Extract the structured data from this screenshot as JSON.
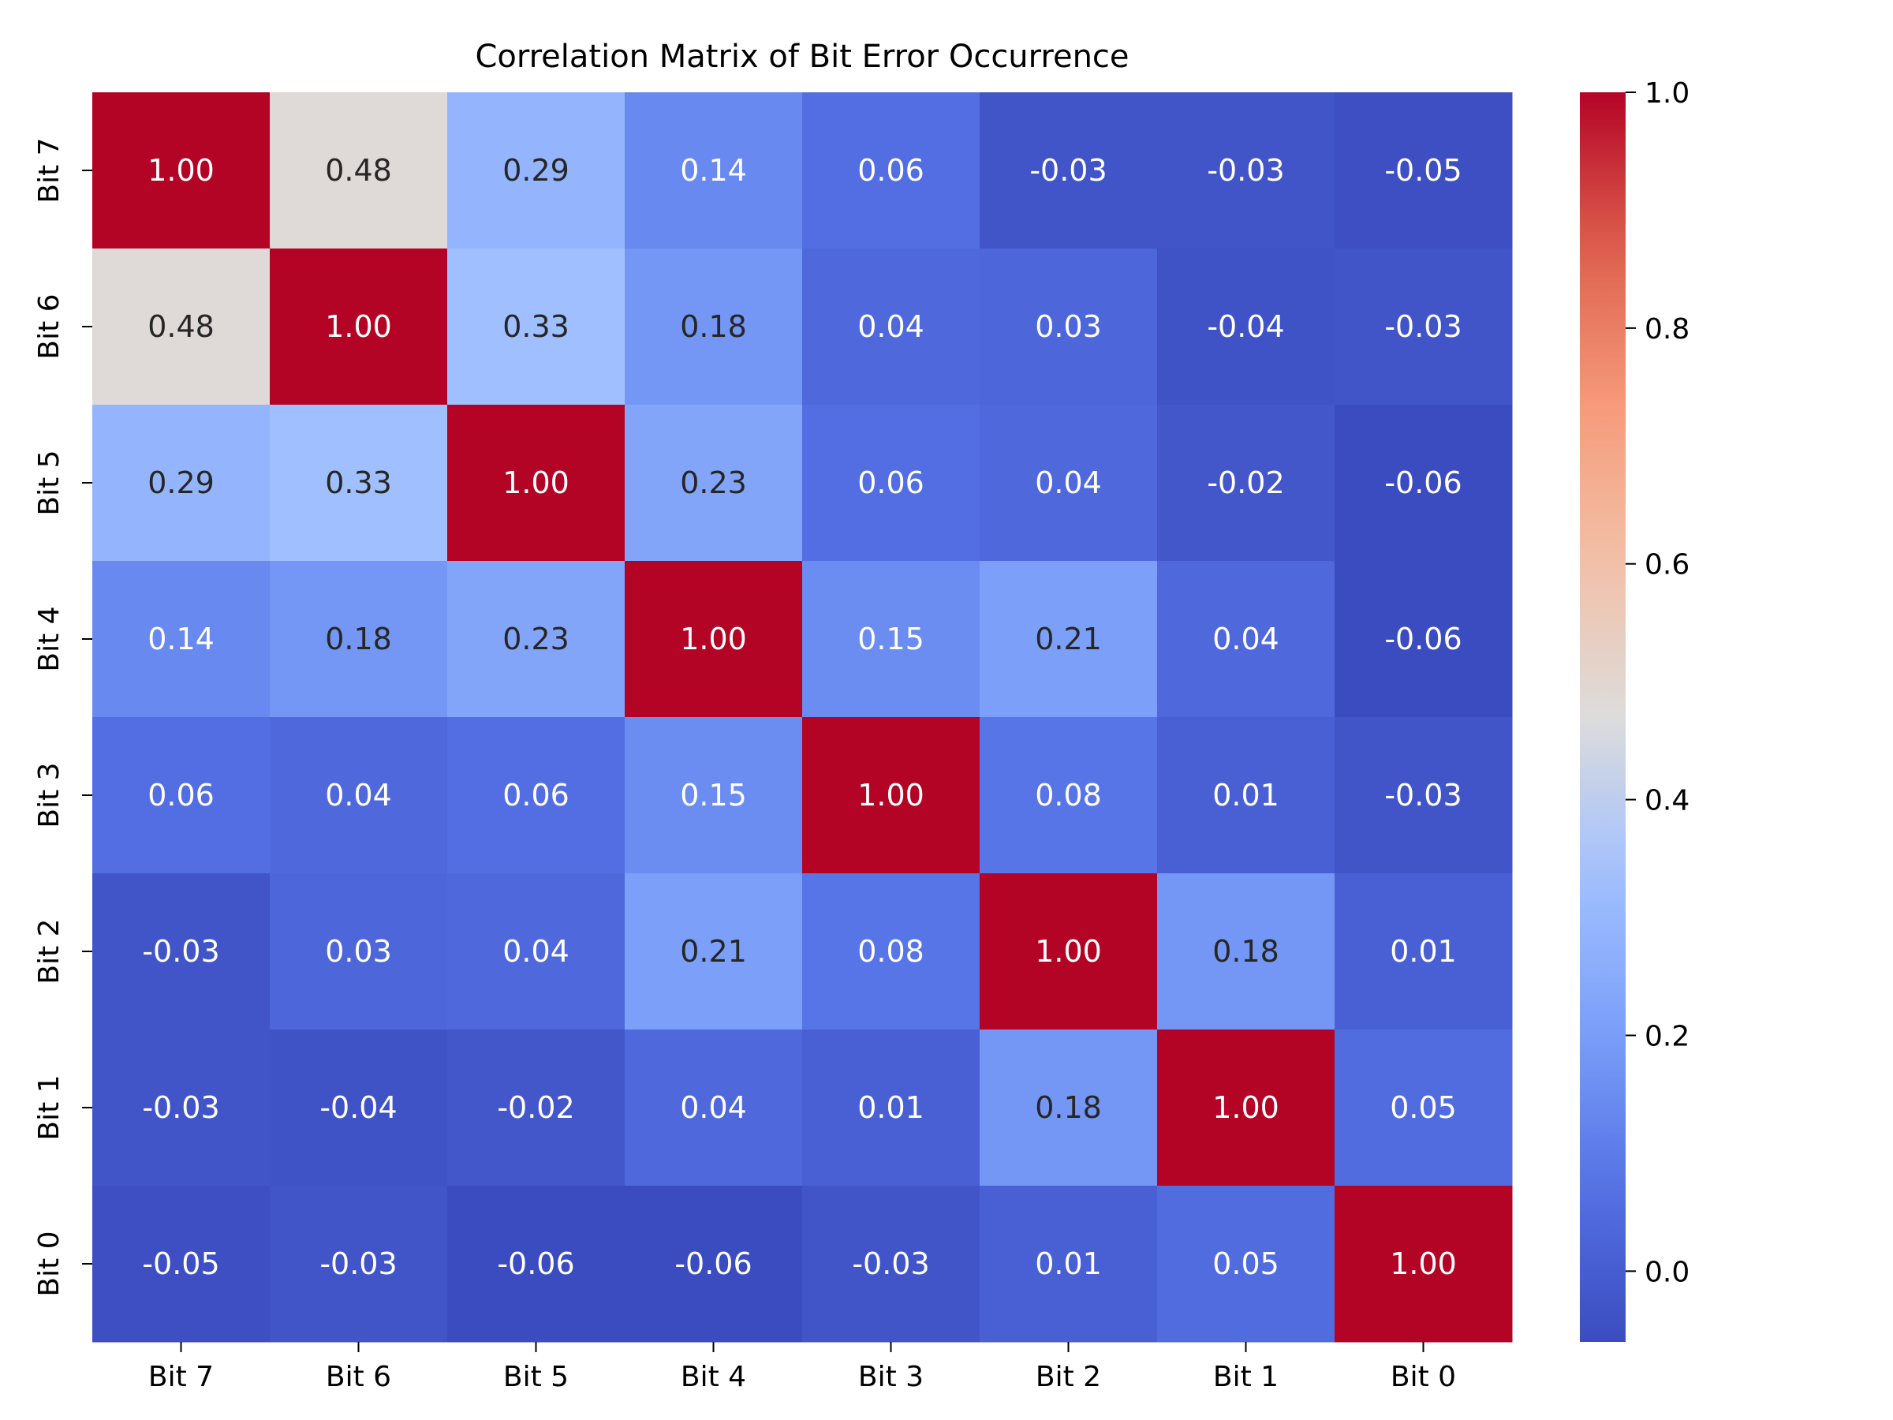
{
  "chart_data": {
    "type": "heatmap",
    "title": "Correlation Matrix of Bit Error Occurrence",
    "xlabel": "",
    "ylabel": "",
    "x_categories": [
      "Bit 7",
      "Bit 6",
      "Bit 5",
      "Bit 4",
      "Bit 3",
      "Bit 2",
      "Bit 1",
      "Bit 0"
    ],
    "y_categories": [
      "Bit 7",
      "Bit 6",
      "Bit 5",
      "Bit 4",
      "Bit 3",
      "Bit 2",
      "Bit 1",
      "Bit 0"
    ],
    "values": [
      [
        1.0,
        0.48,
        0.29,
        0.14,
        0.06,
        -0.03,
        -0.03,
        -0.05
      ],
      [
        0.48,
        1.0,
        0.33,
        0.18,
        0.04,
        0.03,
        -0.04,
        -0.03
      ],
      [
        0.29,
        0.33,
        1.0,
        0.23,
        0.06,
        0.04,
        -0.02,
        -0.06
      ],
      [
        0.14,
        0.18,
        0.23,
        1.0,
        0.15,
        0.21,
        0.04,
        -0.06
      ],
      [
        0.06,
        0.04,
        0.06,
        0.15,
        1.0,
        0.08,
        0.01,
        -0.03
      ],
      [
        -0.03,
        0.03,
        0.04,
        0.21,
        0.08,
        1.0,
        0.18,
        0.01
      ],
      [
        -0.03,
        -0.04,
        -0.02,
        0.04,
        0.01,
        0.18,
        1.0,
        0.05
      ],
      [
        -0.05,
        -0.03,
        -0.06,
        -0.06,
        -0.03,
        0.01,
        0.05,
        1.0
      ]
    ],
    "value_labels": [
      [
        "1.00",
        "0.48",
        "0.29",
        "0.14",
        "0.06",
        "-0.03",
        "-0.03",
        "-0.05"
      ],
      [
        "0.48",
        "1.00",
        "0.33",
        "0.18",
        "0.04",
        "0.03",
        "-0.04",
        "-0.03"
      ],
      [
        "0.29",
        "0.33",
        "1.00",
        "0.23",
        "0.06",
        "0.04",
        "-0.02",
        "-0.06"
      ],
      [
        "0.14",
        "0.18",
        "0.23",
        "1.00",
        "0.15",
        "0.21",
        "0.04",
        "-0.06"
      ],
      [
        "0.06",
        "0.04",
        "0.06",
        "0.15",
        "1.00",
        "0.08",
        "0.01",
        "-0.03"
      ],
      [
        "-0.03",
        "0.03",
        "0.04",
        "0.21",
        "0.08",
        "1.00",
        "0.18",
        "0.01"
      ],
      [
        "-0.03",
        "-0.04",
        "-0.02",
        "0.04",
        "0.01",
        "0.18",
        "1.00",
        "0.05"
      ],
      [
        "-0.05",
        "-0.03",
        "-0.06",
        "-0.06",
        "-0.03",
        "0.01",
        "0.05",
        "1.00"
      ]
    ],
    "colormap": "coolwarm",
    "color_range": [
      -0.06,
      1.0
    ],
    "colorbar": {
      "ticks": [
        0.0,
        0.2,
        0.4,
        0.6,
        0.8,
        1.0
      ],
      "tick_labels": [
        "0.0",
        "0.2",
        "0.4",
        "0.6",
        "0.8",
        "1.0"
      ]
    },
    "grid": false,
    "legend": "colorbar right"
  }
}
